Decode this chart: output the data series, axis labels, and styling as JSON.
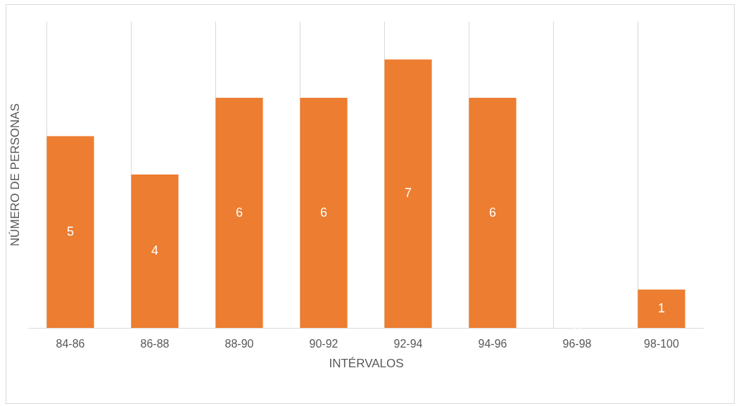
{
  "chart_data": {
    "type": "bar",
    "xlabel": "INTÉRVALOS",
    "ylabel": "NÚMERO DE PERSONAS",
    "categories": [
      "84-86",
      "86-88",
      "88-90",
      "90-92",
      "92-94",
      "94-96",
      "96-98",
      "98-100"
    ],
    "values": [
      5,
      4,
      6,
      6,
      7,
      6,
      0,
      1
    ],
    "color": "#ed7d31",
    "ylim": [
      0,
      8
    ],
    "data_labels": true,
    "grid": "x",
    "tick_labels": "x"
  }
}
